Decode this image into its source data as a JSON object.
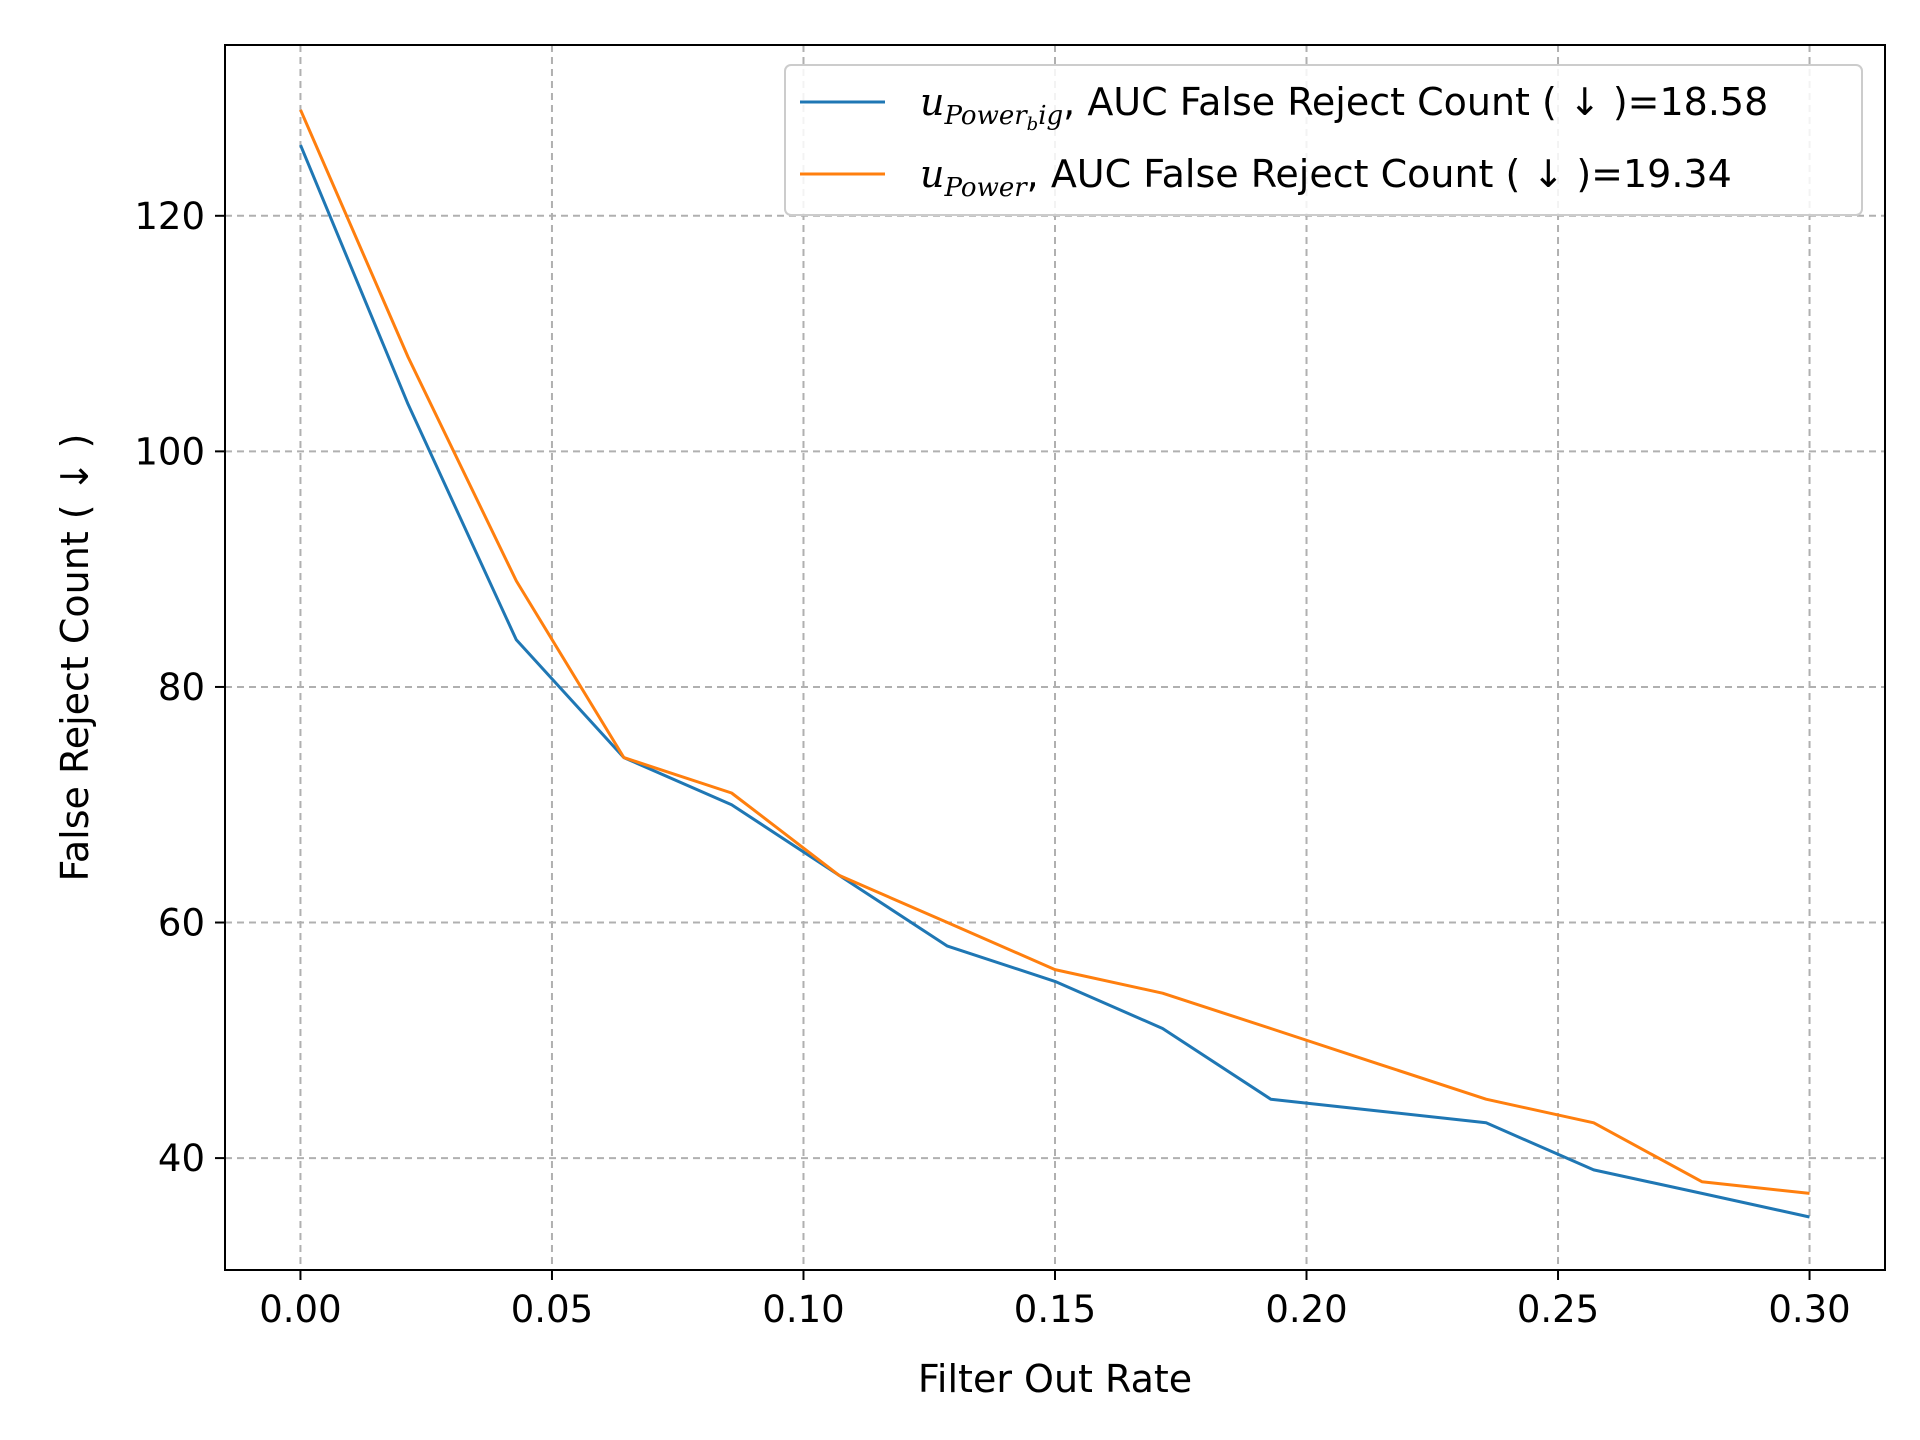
{
  "chart_data": {
    "type": "line",
    "xlabel": "Filter Out Rate",
    "ylabel": "False Reject Count ( ↓ )",
    "xlim": [
      -0.015,
      0.315
    ],
    "ylim": [
      30.5,
      134.5
    ],
    "x_ticks": [
      0.0,
      0.05,
      0.1,
      0.15,
      0.2,
      0.25,
      0.3
    ],
    "x_tick_labels": [
      "0.00",
      "0.05",
      "0.10",
      "0.15",
      "0.20",
      "0.25",
      "0.30"
    ],
    "y_ticks": [
      40,
      60,
      80,
      100,
      120
    ],
    "y_tick_labels": [
      "40",
      "60",
      "80",
      "100",
      "120"
    ],
    "grid": true,
    "legend_position": "top-right",
    "x": [
      0.0,
      0.0214,
      0.0429,
      0.0643,
      0.0857,
      0.1071,
      0.1286,
      0.15,
      0.1714,
      0.1929,
      0.2143,
      0.2357,
      0.2571,
      0.2786,
      0.3
    ],
    "series": [
      {
        "name": "u_{Power_big}, AUC False Reject Count ( ↓ )=18.58",
        "legend_math": "u",
        "legend_sub": "Power",
        "legend_subsub": "b",
        "legend_subtail": "ig",
        "legend_rest": ", AUC False Reject Count ( ↓ )=18.58",
        "color": "#1f77b4",
        "values": [
          126,
          104,
          84,
          74,
          70,
          64,
          58,
          55,
          51,
          45,
          44,
          43,
          39,
          37,
          35
        ]
      },
      {
        "name": "u_{Power}, AUC False Reject Count ( ↓ )=19.34",
        "legend_math": "u",
        "legend_sub": "Power",
        "legend_rest": ", AUC False Reject Count ( ↓ )=19.34",
        "color": "#ff7f0e",
        "values": [
          129,
          108,
          89,
          74,
          71,
          64,
          60,
          56,
          54,
          51,
          48,
          45,
          43,
          38,
          37
        ]
      }
    ]
  }
}
